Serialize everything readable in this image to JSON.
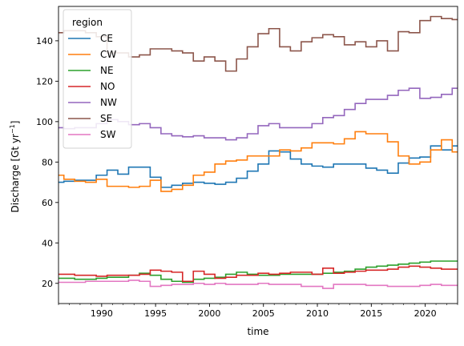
{
  "chart_data": {
    "type": "line",
    "drawstyle": "steps-mid",
    "xlabel": "time",
    "ylabel": "Discharge [Gt yr",
    "ylabel_sup": "−1",
    "ylabel_close": "]",
    "xlim": [
      1986,
      2023
    ],
    "ylim": [
      10,
      157
    ],
    "xticks": [
      1990,
      1995,
      2000,
      2005,
      2010,
      2015,
      2020
    ],
    "yticks": [
      20,
      40,
      60,
      80,
      100,
      120,
      140
    ],
    "legend_title": "region",
    "legend_position": "upper-left",
    "grid": false,
    "x": [
      1986,
      1987,
      1988,
      1989,
      1990,
      1991,
      1992,
      1993,
      1994,
      1995,
      1996,
      1997,
      1998,
      1999,
      2000,
      2001,
      2002,
      2003,
      2004,
      2005,
      2006,
      2007,
      2008,
      2009,
      2010,
      2011,
      2012,
      2013,
      2014,
      2015,
      2016,
      2017,
      2018,
      2019,
      2020,
      2021,
      2022,
      2023
    ],
    "series": [
      {
        "name": "CE",
        "color": "#1f77b4",
        "values": [
          70,
          70.5,
          71,
          71,
          73.5,
          76,
          74,
          77.5,
          77.5,
          72.5,
          67.5,
          68.5,
          69.5,
          70,
          69.5,
          69,
          70,
          72,
          75.5,
          79,
          85.5,
          85,
          81.5,
          79,
          78,
          77.5,
          79,
          79,
          79,
          77,
          76,
          74.5,
          79.5,
          82,
          82.5,
          88,
          86,
          88
        ]
      },
      {
        "name": "CW",
        "color": "#ff7f0e",
        "values": [
          73.5,
          71.5,
          70.5,
          70,
          71.5,
          68,
          68,
          67.5,
          68,
          71,
          65.5,
          66.5,
          68.5,
          73.5,
          75,
          79,
          80.5,
          81,
          83,
          83,
          83,
          86,
          85.5,
          87,
          89.5,
          89.5,
          89,
          91.5,
          95,
          94,
          94,
          90,
          83,
          79,
          80,
          86,
          91,
          85
        ]
      },
      {
        "name": "NE",
        "color": "#2ca02c",
        "values": [
          22.5,
          22.5,
          22,
          22,
          22.5,
          23,
          23,
          24,
          25,
          24,
          22,
          21,
          20.5,
          22,
          22.5,
          23,
          24.5,
          25.5,
          24.5,
          24,
          24,
          24.5,
          24.5,
          24.5,
          24.5,
          25,
          25.5,
          26,
          27,
          28,
          28.5,
          29,
          29.5,
          30,
          30.5,
          31,
          31,
          31
        ]
      },
      {
        "name": "NO",
        "color": "#d62728",
        "values": [
          24.5,
          24.5,
          24,
          24,
          23.5,
          24,
          24,
          24,
          24.5,
          26.5,
          26,
          25.5,
          21,
          26,
          24.5,
          22.5,
          23,
          24,
          24,
          25,
          24.5,
          25,
          25.5,
          25.5,
          24.5,
          27.5,
          25,
          25.5,
          26,
          26.5,
          26.5,
          27,
          28,
          28.5,
          28,
          27.5,
          27,
          27
        ]
      },
      {
        "name": "NW",
        "color": "#9467bd",
        "values": [
          97,
          96.5,
          97,
          97,
          99,
          101,
          100,
          98.5,
          99,
          97,
          94,
          93,
          92.5,
          93,
          92,
          92,
          91,
          92,
          94,
          98,
          99,
          97,
          97,
          97,
          99,
          102,
          103,
          106,
          109,
          111,
          111,
          113,
          115.5,
          116.5,
          111.5,
          112,
          113.5,
          116.5
        ]
      },
      {
        "name": "SE",
        "color": "#8c564b",
        "values": [
          144,
          145,
          145,
          144,
          142,
          134,
          134,
          132,
          133,
          136,
          136,
          135,
          134,
          130,
          132,
          130,
          125,
          131,
          137,
          143.5,
          146,
          137,
          135,
          139.5,
          141.5,
          143,
          142,
          138,
          139.5,
          137,
          140,
          135,
          144.5,
          144,
          150,
          152,
          151,
          150.5
        ]
      },
      {
        "name": "SW",
        "color": "#e377c2",
        "values": [
          20.5,
          20.5,
          20.5,
          21,
          21,
          21,
          21,
          21.5,
          21,
          18.5,
          19,
          19.5,
          19.5,
          20,
          19.5,
          20,
          19.5,
          19.5,
          19.5,
          20,
          19.5,
          19.5,
          19.5,
          18.5,
          18.5,
          17.5,
          19.5,
          19.5,
          19.5,
          19,
          19,
          18.5,
          18.5,
          18.5,
          19,
          19.5,
          19,
          19
        ]
      }
    ]
  }
}
